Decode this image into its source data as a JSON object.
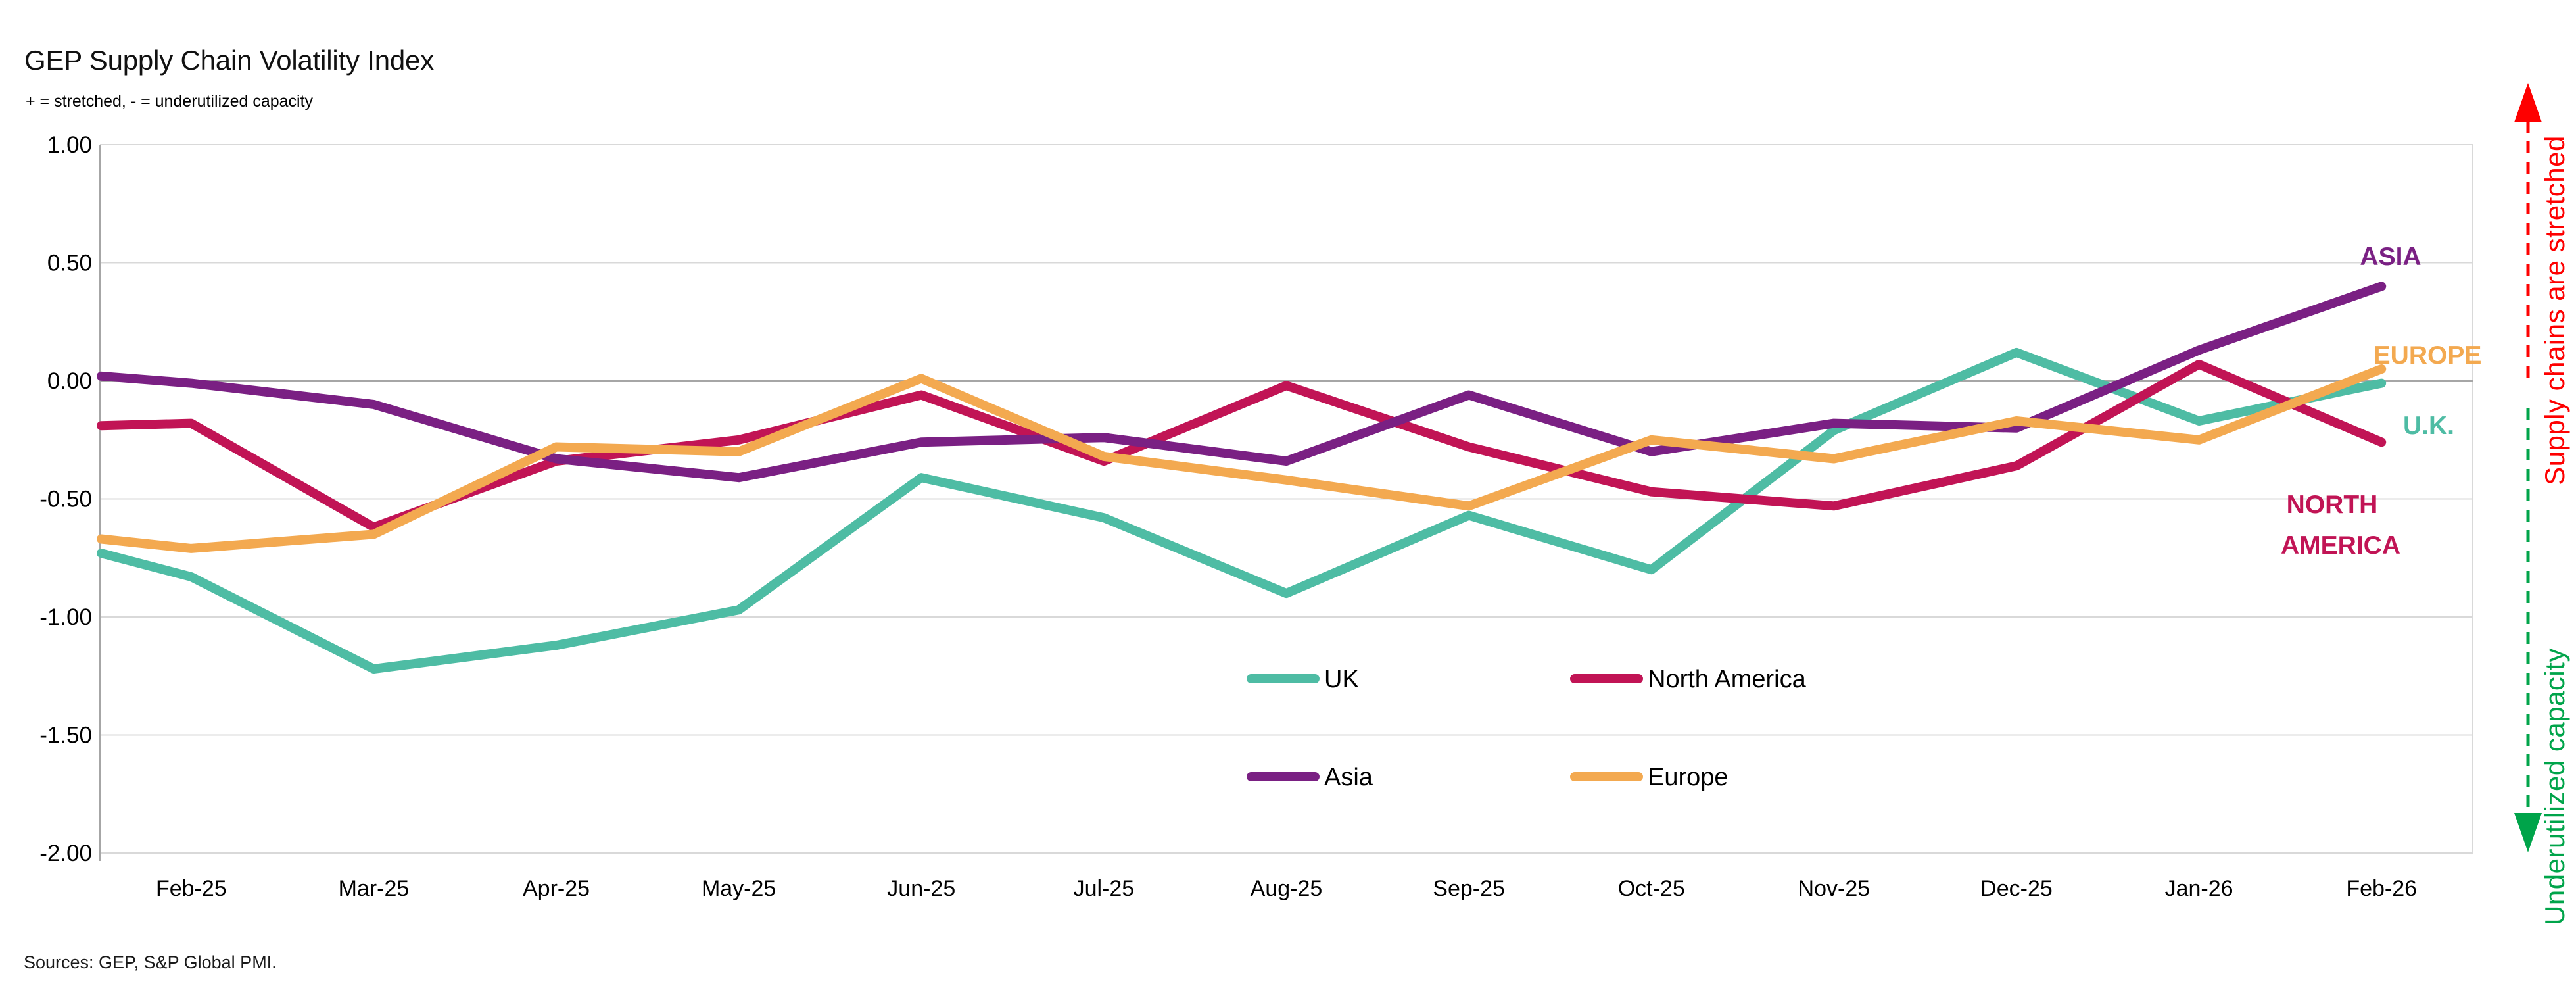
{
  "header": {
    "title": "GEP Supply Chain Volatility Index",
    "subtitle": "+ = stretched, - = underutilized capacity"
  },
  "footer": {
    "sources": "Sources: GEP, S&P Global PMI."
  },
  "side_captions": {
    "stretched": {
      "text": "Supply chains are stretched",
      "color": "#FE0000"
    },
    "underutilized": {
      "text": "Underutilized capacity",
      "color": "#00A44A"
    }
  },
  "chart_data": {
    "type": "line",
    "title": "GEP Supply Chain Volatility Index",
    "subtitle": "+ = stretched, - = underutilized capacity",
    "x_categories": [
      "Feb-25",
      "Mar-25",
      "Apr-25",
      "May-25",
      "Jun-25",
      "Jul-25",
      "Aug-25",
      "Sep-25",
      "Oct-25",
      "Nov-25",
      "Dec-25",
      "Jan-26",
      "Feb-26"
    ],
    "ylim": [
      -2.0,
      1.0
    ],
    "y_tick_step": 0.5,
    "y_tick_labels": [
      "1.00",
      "0.50",
      "0.00",
      "-0.50",
      "-1.00",
      "-1.50",
      "-2.00"
    ],
    "grid": "horizontal",
    "zero_line": true,
    "legend_position": "inside-bottom-center",
    "note": "each series has an unlabeled starting value drawn at the plot left edge (month before Feb-25)",
    "series": [
      {
        "name": "UK",
        "end_label": "U.K.",
        "color": "#4EBCA4",
        "edge_value": -0.73,
        "values": [
          -0.83,
          -1.22,
          -1.12,
          -0.97,
          -0.41,
          -0.58,
          -0.9,
          -0.57,
          -0.8,
          -0.21,
          0.12,
          -0.17,
          -0.01
        ]
      },
      {
        "name": "North America",
        "end_label": "NORTH AMERICA",
        "color": "#C11455",
        "edge_value": -0.19,
        "values": [
          -0.18,
          -0.62,
          -0.34,
          -0.25,
          -0.06,
          -0.34,
          -0.02,
          -0.28,
          -0.47,
          -0.53,
          -0.36,
          0.07,
          -0.26
        ]
      },
      {
        "name": "Asia",
        "end_label": "ASIA",
        "color": "#7A2083",
        "edge_value": 0.02,
        "values": [
          -0.01,
          -0.1,
          -0.33,
          -0.41,
          -0.26,
          -0.24,
          -0.34,
          -0.06,
          -0.3,
          -0.18,
          -0.2,
          0.13,
          0.4
        ]
      },
      {
        "name": "Europe",
        "end_label": "EUROPE",
        "color": "#F3A950",
        "edge_value": -0.67,
        "values": [
          -0.71,
          -0.65,
          -0.28,
          -0.3,
          0.01,
          -0.32,
          -0.42,
          -0.53,
          -0.25,
          -0.33,
          -0.17,
          -0.25,
          0.05
        ]
      }
    ],
    "legend_rows": [
      [
        "UK",
        "North America"
      ],
      [
        "Asia",
        "Europe"
      ]
    ]
  },
  "colors": {
    "gridline": "#D9D9D9",
    "zero_line": "#A6A6A6",
    "axis_line": "#A6A6A6",
    "tick_text": "#000000"
  }
}
